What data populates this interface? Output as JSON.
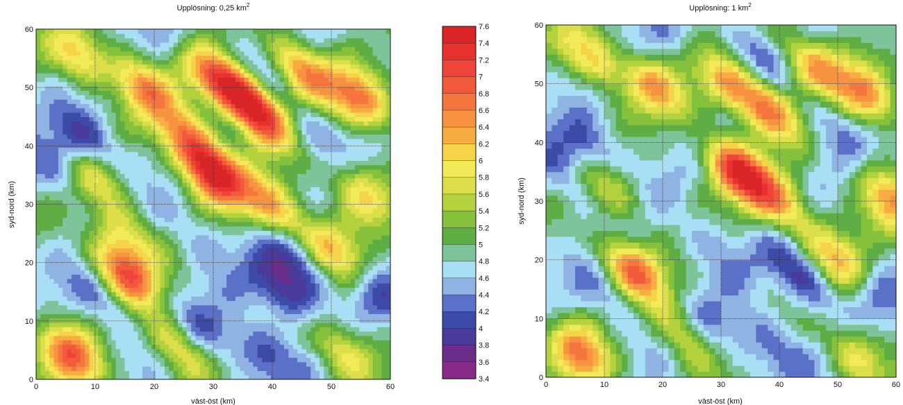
{
  "chart_data": [
    {
      "type": "heatmap",
      "title_text": "Upplösning: 0,25 km",
      "title_sup": "2",
      "xlabel": "väst-öst (km)",
      "ylabel": "syd-nord (km)",
      "xlim": [
        0,
        60
      ],
      "ylim": [
        0,
        60
      ],
      "xticks": [
        0,
        10,
        20,
        30,
        40,
        50,
        60
      ],
      "yticks": [
        0,
        10,
        20,
        30,
        40,
        50,
        60
      ],
      "grid": true,
      "features": [
        {
          "x": 30,
          "y": 35,
          "v": 7.2
        },
        {
          "x": 15,
          "y": 18,
          "v": 6.9
        },
        {
          "x": 6,
          "y": 4,
          "v": 6.8
        },
        {
          "x": 55,
          "y": 48,
          "v": 6.6
        },
        {
          "x": 38,
          "y": 45,
          "v": 6.6
        },
        {
          "x": 18,
          "y": 50,
          "v": 6.5
        },
        {
          "x": 8,
          "y": 55,
          "v": 6.3
        },
        {
          "x": 45,
          "y": 53,
          "v": 6.6
        },
        {
          "x": 30,
          "y": 52,
          "v": 6.3
        },
        {
          "x": 35,
          "y": 49,
          "v": 6.4
        },
        {
          "x": 10,
          "y": 35,
          "v": 6.0
        },
        {
          "x": 26,
          "y": 41,
          "v": 6.4
        },
        {
          "x": 40,
          "y": 30,
          "v": 6.3
        },
        {
          "x": 50,
          "y": 22,
          "v": 6.2
        },
        {
          "x": 15,
          "y": 25,
          "v": 5.8
        },
        {
          "x": 24,
          "y": 6,
          "v": 6.0
        },
        {
          "x": 52,
          "y": 5,
          "v": 6.0
        },
        {
          "x": 55,
          "y": 32,
          "v": 6.0
        },
        {
          "x": 9,
          "y": 40,
          "v": 3.7
        },
        {
          "x": 4,
          "y": 36,
          "v": 4.2
        },
        {
          "x": 42,
          "y": 15,
          "v": 3.7
        },
        {
          "x": 45,
          "y": 20,
          "v": 3.9
        },
        {
          "x": 12,
          "y": 14,
          "v": 4.1
        },
        {
          "x": 38,
          "y": 5,
          "v": 4.0
        },
        {
          "x": 47,
          "y": 43,
          "v": 4.2
        },
        {
          "x": 38,
          "y": 53,
          "v": 4.3
        },
        {
          "x": 28,
          "y": 8,
          "v": 4.2
        },
        {
          "x": 27,
          "y": 25,
          "v": 4.4
        },
        {
          "x": 12,
          "y": 52,
          "v": 4.4
        },
        {
          "x": 58,
          "y": 15,
          "v": 4.3
        },
        {
          "x": 25,
          "y": 58,
          "v": 4.5
        }
      ]
    },
    {
      "type": "heatmap",
      "title_text": "Upplösning: 1 km",
      "title_sup": "2",
      "xlabel": "väst-öst (km)",
      "ylabel": "syd-nord (km)",
      "xlim": [
        0,
        60
      ],
      "ylim": [
        0,
        60
      ],
      "xticks": [
        0,
        10,
        20,
        30,
        40,
        50,
        60
      ],
      "yticks": [
        0,
        10,
        20,
        30,
        40,
        50,
        60
      ],
      "grid": true,
      "features": [
        {
          "x": 33,
          "y": 35,
          "v": 7.2
        },
        {
          "x": 15,
          "y": 18,
          "v": 6.8
        },
        {
          "x": 6,
          "y": 4,
          "v": 6.6
        },
        {
          "x": 55,
          "y": 48,
          "v": 6.4
        },
        {
          "x": 38,
          "y": 46,
          "v": 6.5
        },
        {
          "x": 18,
          "y": 50,
          "v": 6.4
        },
        {
          "x": 8,
          "y": 55,
          "v": 6.2
        },
        {
          "x": 46,
          "y": 53,
          "v": 6.4
        },
        {
          "x": 31,
          "y": 50,
          "v": 6.1
        },
        {
          "x": 10,
          "y": 33,
          "v": 6.0
        },
        {
          "x": 40,
          "y": 30,
          "v": 6.2
        },
        {
          "x": 50,
          "y": 20,
          "v": 6.1
        },
        {
          "x": 24,
          "y": 7,
          "v": 5.9
        },
        {
          "x": 53,
          "y": 4,
          "v": 5.9
        },
        {
          "x": 59,
          "y": 30,
          "v": 6.3
        },
        {
          "x": 8,
          "y": 38,
          "v": 3.8
        },
        {
          "x": 4,
          "y": 34,
          "v": 4.2
        },
        {
          "x": 44,
          "y": 17,
          "v": 3.8
        },
        {
          "x": 12,
          "y": 14,
          "v": 4.2
        },
        {
          "x": 38,
          "y": 6,
          "v": 4.1
        },
        {
          "x": 49,
          "y": 44,
          "v": 4.2
        },
        {
          "x": 36,
          "y": 55,
          "v": 4.2
        },
        {
          "x": 28,
          "y": 8,
          "v": 4.3
        },
        {
          "x": 28,
          "y": 23,
          "v": 4.4
        },
        {
          "x": 14,
          "y": 55,
          "v": 4.4
        },
        {
          "x": 57,
          "y": 14,
          "v": 4.4
        },
        {
          "x": 24,
          "y": 58,
          "v": 4.6
        }
      ]
    }
  ],
  "colorbar": {
    "levels": [
      "7.6",
      "7.4",
      "7.2",
      "7",
      "6.8",
      "6.6",
      "6.4",
      "6.2",
      "6",
      "5.8",
      "5.6",
      "5.4",
      "5.2",
      "5",
      "4.8",
      "4.6",
      "4.4",
      "4.2",
      "4",
      "3.8",
      "3.6",
      "3.4"
    ],
    "colors": [
      "#d92428",
      "#e8322d",
      "#f0443a",
      "#f25a3c",
      "#f4753d",
      "#f69240",
      "#f7ad42",
      "#f6d44a",
      "#f2ea58",
      "#dcde4a",
      "#b3d23e",
      "#86c13c",
      "#5fae45",
      "#7ec49a",
      "#a9dff4",
      "#8fb4e3",
      "#5a71c7",
      "#3d4aa8",
      "#4a3a9a",
      "#6b2d8a",
      "#882a8a"
    ]
  }
}
